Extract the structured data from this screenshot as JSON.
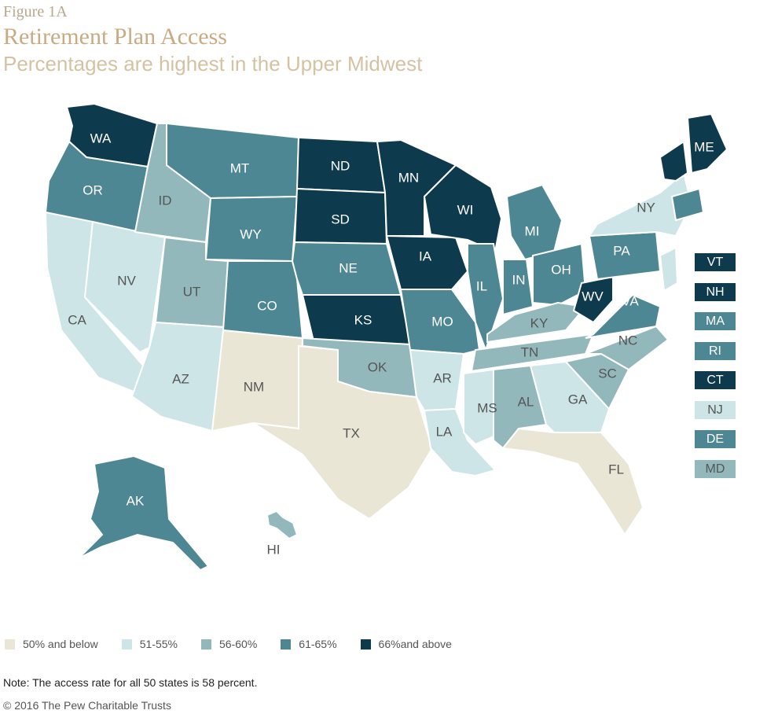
{
  "header": {
    "figure_label": "Figure 1A",
    "title": "Retirement Plan Access",
    "subtitle": "Percentages are highest in the Upper Midwest"
  },
  "colors": {
    "c1": "#e9e6d6",
    "c2": "#cde5e6",
    "c3": "#93b8bc",
    "c4": "#4e8794",
    "c5": "#0e3a4d"
  },
  "legend": [
    {
      "key": "c1",
      "label": "50% and below"
    },
    {
      "key": "c2",
      "label": "51-55%"
    },
    {
      "key": "c3",
      "label": "56-60%"
    },
    {
      "key": "c4",
      "label": "61-65%"
    },
    {
      "key": "c5",
      "label": "66%and above"
    }
  ],
  "states": [
    {
      "abbr": "WA",
      "cat": "c5"
    },
    {
      "abbr": "OR",
      "cat": "c4"
    },
    {
      "abbr": "CA",
      "cat": "c2"
    },
    {
      "abbr": "NV",
      "cat": "c2"
    },
    {
      "abbr": "ID",
      "cat": "c3"
    },
    {
      "abbr": "MT",
      "cat": "c4"
    },
    {
      "abbr": "WY",
      "cat": "c4"
    },
    {
      "abbr": "UT",
      "cat": "c3"
    },
    {
      "abbr": "AZ",
      "cat": "c2"
    },
    {
      "abbr": "CO",
      "cat": "c4"
    },
    {
      "abbr": "NM",
      "cat": "c1"
    },
    {
      "abbr": "ND",
      "cat": "c5"
    },
    {
      "abbr": "SD",
      "cat": "c5"
    },
    {
      "abbr": "NE",
      "cat": "c4"
    },
    {
      "abbr": "KS",
      "cat": "c5"
    },
    {
      "abbr": "OK",
      "cat": "c3"
    },
    {
      "abbr": "TX",
      "cat": "c1"
    },
    {
      "abbr": "MN",
      "cat": "c5"
    },
    {
      "abbr": "IA",
      "cat": "c5"
    },
    {
      "abbr": "MO",
      "cat": "c4"
    },
    {
      "abbr": "AR",
      "cat": "c2"
    },
    {
      "abbr": "LA",
      "cat": "c2"
    },
    {
      "abbr": "WI",
      "cat": "c5"
    },
    {
      "abbr": "IL",
      "cat": "c4"
    },
    {
      "abbr": "MI",
      "cat": "c4"
    },
    {
      "abbr": "IN",
      "cat": "c4"
    },
    {
      "abbr": "OH",
      "cat": "c4"
    },
    {
      "abbr": "KY",
      "cat": "c3"
    },
    {
      "abbr": "TN",
      "cat": "c3"
    },
    {
      "abbr": "MS",
      "cat": "c2"
    },
    {
      "abbr": "AL",
      "cat": "c3"
    },
    {
      "abbr": "GA",
      "cat": "c2"
    },
    {
      "abbr": "FL",
      "cat": "c1"
    },
    {
      "abbr": "SC",
      "cat": "c3"
    },
    {
      "abbr": "NC",
      "cat": "c3"
    },
    {
      "abbr": "VA",
      "cat": "c4"
    },
    {
      "abbr": "WV",
      "cat": "c5"
    },
    {
      "abbr": "PA",
      "cat": "c4"
    },
    {
      "abbr": "NY",
      "cat": "c2"
    },
    {
      "abbr": "ME",
      "cat": "c5"
    },
    {
      "abbr": "AK",
      "cat": "c4"
    },
    {
      "abbr": "HI",
      "cat": "c3"
    }
  ],
  "northeast_boxes": [
    {
      "abbr": "VT",
      "cat": "c5"
    },
    {
      "abbr": "NH",
      "cat": "c5"
    },
    {
      "abbr": "MA",
      "cat": "c4"
    },
    {
      "abbr": "RI",
      "cat": "c4"
    },
    {
      "abbr": "CT",
      "cat": "c5"
    },
    {
      "abbr": "NJ",
      "cat": "c2"
    },
    {
      "abbr": "DE",
      "cat": "c4"
    },
    {
      "abbr": "MD",
      "cat": "c3"
    }
  ],
  "note": "Note: The access rate for all 50 states is 58 percent.",
  "copyright": "© 2016 The Pew Charitable Trusts"
}
